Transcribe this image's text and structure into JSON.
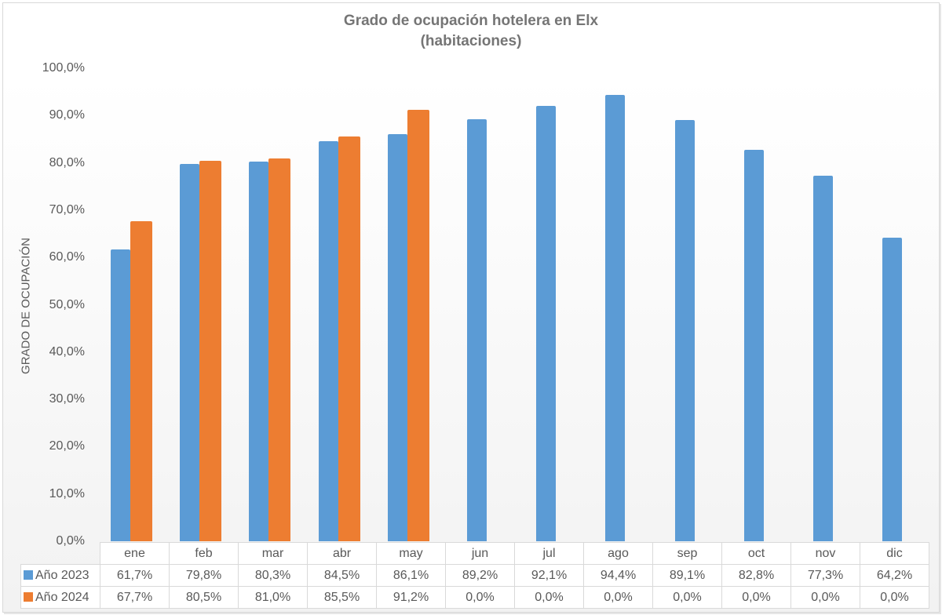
{
  "chart_data": {
    "type": "bar",
    "title": "Grado de ocupación hotelera en Elx",
    "subtitle": "(habitaciones)",
    "xlabel": "",
    "ylabel": "GRADO DE OCUPACIÓN",
    "ylim": [
      0,
      100
    ],
    "yticks": [
      "0,0%",
      "10,0%",
      "20,0%",
      "30,0%",
      "40,0%",
      "50,0%",
      "60,0%",
      "70,0%",
      "80,0%",
      "90,0%",
      "100,0%"
    ],
    "grid": false,
    "legend_position": "data-table",
    "categories": [
      "ene",
      "feb",
      "mar",
      "abr",
      "may",
      "jun",
      "jul",
      "ago",
      "sep",
      "oct",
      "nov",
      "dic"
    ],
    "series": [
      {
        "name": "Año 2023",
        "color": "#5b9bd5",
        "values": [
          61.7,
          79.8,
          80.3,
          84.5,
          86.1,
          89.2,
          92.1,
          94.4,
          89.1,
          82.8,
          77.3,
          64.2
        ],
        "labels": [
          "61,7%",
          "79,8%",
          "80,3%",
          "84,5%",
          "86,1%",
          "89,2%",
          "92,1%",
          "94,4%",
          "89,1%",
          "82,8%",
          "77,3%",
          "64,2%"
        ]
      },
      {
        "name": "Año 2024",
        "color": "#ed7d31",
        "values": [
          67.7,
          80.5,
          81.0,
          85.5,
          91.2,
          0.0,
          0.0,
          0.0,
          0.0,
          0.0,
          0.0,
          0.0
        ],
        "labels": [
          "67,7%",
          "80,5%",
          "81,0%",
          "85,5%",
          "91,2%",
          "0,0%",
          "0,0%",
          "0,0%",
          "0,0%",
          "0,0%",
          "0,0%",
          "0,0%"
        ]
      }
    ]
  }
}
